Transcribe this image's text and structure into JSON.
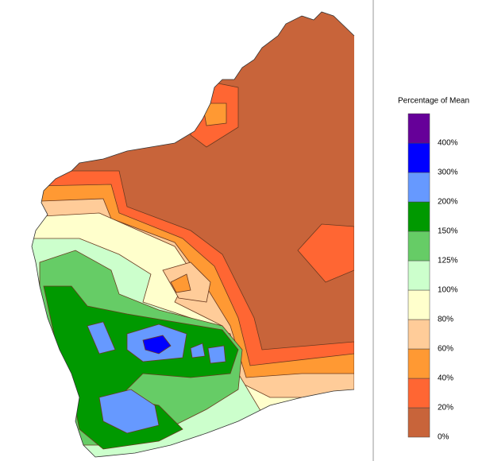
{
  "legend": {
    "title": "Percentage of Mean",
    "colors": [
      "#c8643a",
      "#ff6633",
      "#ff9933",
      "#ffcc99",
      "#ffffcc",
      "#ccffcc",
      "#66cc66",
      "#009900",
      "#6699ff",
      "#0000ff",
      "#660099"
    ],
    "labels": [
      "0%",
      "20%",
      "40%",
      "60%",
      "80%",
      "100%",
      "125%",
      "150%",
      "200%",
      "300%",
      "400%"
    ]
  }
}
